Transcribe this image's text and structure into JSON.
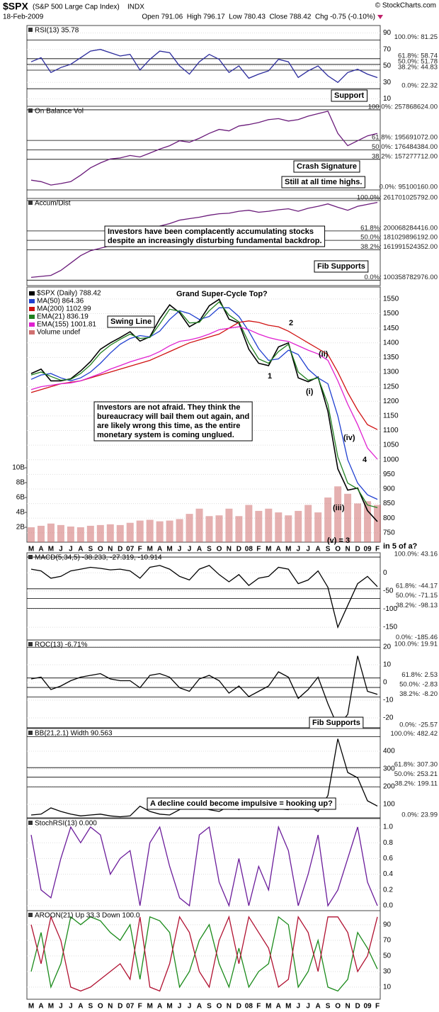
{
  "header": {
    "symbol": "$SPX",
    "name": "(S&P 500 Large Cap Index)",
    "exchange": "INDX",
    "copyright": "© StockCharts.com",
    "date": "18-Feb-2009",
    "quote": "Open 791.06  High 796.17  Low 780.43  Close 788.42  Chg -0.75 (-0.10%)"
  },
  "chart_data": [
    {
      "type": "line",
      "title": "RSI(13) 35.78",
      "ylim": [
        1,
        99
      ],
      "yticks": [
        90,
        70,
        50,
        30,
        10
      ],
      "series": [
        {
          "name": "RSI(13)",
          "color": "#2a2a9c",
          "values": [
            55,
            60,
            42,
            48,
            52,
            60,
            68,
            70,
            66,
            62,
            64,
            45,
            58,
            68,
            66,
            50,
            40,
            55,
            64,
            58,
            42,
            50,
            35,
            40,
            44,
            58,
            55,
            36,
            44,
            50,
            38,
            30,
            42,
            46,
            40,
            35.78
          ]
        }
      ],
      "fib": [
        {
          "value": 81.25,
          "label": "100.0%: 81.25"
        },
        {
          "value": 58.74,
          "label": "61.8%: 58.74"
        },
        {
          "value": 51.78,
          "label": "50.0%: 51.78"
        },
        {
          "value": 44.83,
          "label": "38.2%: 44.83"
        },
        {
          "value": 22.32,
          "label": "0.0%: 22.32"
        }
      ],
      "annotations": [
        [
          "Support"
        ]
      ]
    },
    {
      "type": "line",
      "title": "On Balance Vol",
      "ylim": [
        77800000,
        265000000
      ],
      "series": [
        {
          "name": "On Balance Vol",
          "color": "#6a1b7a",
          "values": [
            115000000,
            112000000,
            105000000,
            108000000,
            112000000,
            125000000,
            140000000,
            150000000,
            158000000,
            160000000,
            165000000,
            162000000,
            170000000,
            178000000,
            185000000,
            195000000,
            192000000,
            200000000,
            210000000,
            218000000,
            215000000,
            225000000,
            228000000,
            232000000,
            238000000,
            240000000,
            235000000,
            238000000,
            245000000,
            250000000,
            255000000,
            210000000,
            185000000,
            195000000,
            205000000,
            210000000
          ]
        }
      ],
      "fib": [
        {
          "value": 257868624,
          "label": "100.0%: 257868624.00"
        },
        {
          "value": 195691072,
          "label": "61.8%: 195691072.00"
        },
        {
          "value": 176484384,
          "label": "50.0%: 176484384.00"
        },
        {
          "value": 157277712,
          "label": "38.2%: 157277712.00"
        },
        {
          "value": 95100160,
          "label": "0.0%: 95100160.00"
        }
      ],
      "annotations": [
        [
          "Crash Signature"
        ],
        [
          "Still at all time highs."
        ]
      ]
    },
    {
      "type": "line",
      "title": "Accum/Dist",
      "ylim": [
        89300000000,
        266000000000
      ],
      "series": [
        {
          "name": "Accum/Dist",
          "color": "#6a1b7a",
          "values": [
            106000000000,
            108000000000,
            110000000000,
            120000000000,
            135000000000,
            150000000000,
            160000000000,
            165000000000,
            170000000000,
            180000000000,
            190000000000,
            200000000000,
            205000000000,
            210000000000,
            215000000000,
            222000000000,
            225000000000,
            228000000000,
            232000000000,
            235000000000,
            236000000000,
            240000000000,
            242000000000,
            238000000000,
            240000000000,
            243000000000,
            245000000000,
            240000000000,
            246000000000,
            250000000000,
            255000000000,
            248000000000,
            242000000000,
            250000000000,
            254000000000,
            258000000000
          ]
        }
      ],
      "fib": [
        {
          "value": 261701025792,
          "label": "100.0%: 261701025792.00"
        },
        {
          "value": 200068284416,
          "label": "61.8%: 200068284416.00"
        },
        {
          "value": 181029896192,
          "label": "50.0%: 181029896192.00"
        },
        {
          "value": 161991524352,
          "label": "38.2%: 161991524352.00"
        },
        {
          "value": 100358782976,
          "label": "0.0%: 100358782976.00"
        }
      ],
      "annotations": [
        [
          "Investors have been complacently accumulating stocks",
          "despite an increasingly disturbing fundamental backdrop."
        ],
        [
          "Fib Supports"
        ]
      ]
    },
    {
      "type": "line",
      "ylim": [
        718,
        1591
      ],
      "yticks": [
        1550,
        1500,
        1450,
        1400,
        1350,
        1300,
        1250,
        1200,
        1150,
        1100,
        1050,
        1000,
        950,
        900,
        850,
        800,
        750
      ],
      "y2lim": [
        0,
        34300000000
      ],
      "y2ticks": [
        {
          "value": 2000000000,
          "label": "2B"
        },
        {
          "value": 4000000000,
          "label": "4B"
        },
        {
          "value": 6000000000,
          "label": "6B"
        },
        {
          "value": 8000000000,
          "label": "8B"
        },
        {
          "value": 10000000000,
          "label": "10B"
        }
      ],
      "categories": [
        "M",
        "A",
        "M",
        "J",
        "J",
        "A",
        "S",
        "O",
        "N",
        "D",
        "07",
        "F",
        "M",
        "A",
        "M",
        "J",
        "J",
        "A",
        "S",
        "O",
        "N",
        "D",
        "08",
        "F",
        "M",
        "A",
        "M",
        "J",
        "J",
        "A",
        "S",
        "O",
        "N",
        "D",
        "09",
        "F"
      ],
      "series": [
        {
          "name": "$SPX (Daily) 788.42",
          "color": "#000000",
          "values": [
            1295,
            1310,
            1270,
            1270,
            1277,
            1304,
            1336,
            1378,
            1400,
            1418,
            1438,
            1406,
            1421,
            1482,
            1530,
            1503,
            1455,
            1474,
            1527,
            1549,
            1481,
            1468,
            1378,
            1330,
            1322,
            1386,
            1400,
            1280,
            1267,
            1283,
            1166,
            969,
            896,
            903,
            826,
            788.42
          ]
        },
        {
          "name": "MA(50) 864.36",
          "color": "#1f3fd0",
          "values": [
            1275,
            1290,
            1295,
            1280,
            1270,
            1280,
            1300,
            1330,
            1365,
            1395,
            1415,
            1425,
            1420,
            1440,
            1480,
            1510,
            1500,
            1480,
            1490,
            1520,
            1520,
            1490,
            1440,
            1380,
            1340,
            1345,
            1375,
            1360,
            1310,
            1280,
            1260,
            1150,
            1000,
            920,
            880,
            864.36
          ]
        },
        {
          "name": "MA(200) 1102.99",
          "color": "#d01010",
          "values": [
            1230,
            1240,
            1250,
            1260,
            1265,
            1270,
            1280,
            1290,
            1300,
            1310,
            1320,
            1330,
            1340,
            1355,
            1370,
            1385,
            1400,
            1410,
            1420,
            1430,
            1450,
            1470,
            1475,
            1470,
            1460,
            1455,
            1440,
            1420,
            1400,
            1380,
            1360,
            1300,
            1230,
            1170,
            1120,
            1102.99
          ]
        },
        {
          "name": "EMA(21) 836.19",
          "color": "#208020",
          "values": [
            1290,
            1300,
            1285,
            1272,
            1275,
            1295,
            1325,
            1365,
            1392,
            1412,
            1430,
            1415,
            1418,
            1465,
            1515,
            1508,
            1468,
            1470,
            1510,
            1540,
            1495,
            1472,
            1400,
            1345,
            1330,
            1370,
            1395,
            1300,
            1272,
            1280,
            1190,
            1010,
            920,
            900,
            845,
            836.19
          ]
        },
        {
          "name": "EMA(155) 1001.81",
          "color": "#e020d0",
          "values": [
            1240,
            1250,
            1255,
            1260,
            1263,
            1270,
            1282,
            1295,
            1310,
            1322,
            1335,
            1345,
            1355,
            1370,
            1390,
            1405,
            1410,
            1418,
            1430,
            1445,
            1450,
            1455,
            1445,
            1430,
            1418,
            1410,
            1405,
            1390,
            1375,
            1362,
            1340,
            1270,
            1190,
            1120,
            1040,
            1001.81
          ]
        },
        {
          "name": "Volume undef",
          "color": "#d07070",
          "axis": "y2",
          "values": [
            2000000000,
            2200000000,
            2500000000,
            2300000000,
            2100000000,
            2000000000,
            2200000000,
            2300000000,
            2400000000,
            2300000000,
            2600000000,
            2900000000,
            3000000000,
            2800000000,
            2900000000,
            3100000000,
            3800000000,
            4500000000,
            3500000000,
            3600000000,
            4500000000,
            3500000000,
            5000000000,
            4200000000,
            4500000000,
            4000000000,
            3600000000,
            4200000000,
            5000000000,
            4000000000,
            6000000000,
            7500000000,
            6500000000,
            5200000000,
            5500000000,
            5000000000
          ]
        }
      ],
      "annotations": [
        [
          "Grand Super-Cycle Top?"
        ],
        [
          "Swing Line"
        ],
        [
          "Investors are not afraid. They think the",
          "bureaucracy will bail them out again, and",
          "are likely wrong this time, as the entire",
          "monetary system is coming unglued."
        ],
        [
          "1"
        ],
        [
          "2"
        ],
        [
          "(i)"
        ],
        [
          "(ii)"
        ],
        [
          "(iii)"
        ],
        [
          "(iv)"
        ],
        [
          "(v) = 3"
        ],
        [
          "4"
        ],
        [
          "in 5 of a?"
        ]
      ]
    },
    {
      "type": "line",
      "title": "MACD(5,34,5) -38.233, -27.319, -10.914",
      "ylim": [
        -185,
        55
      ],
      "yticks": [
        0,
        -50,
        -100,
        -150
      ],
      "series": [
        {
          "name": "MACD(5,34,5)",
          "color": "#000000",
          "values": [
            10,
            5,
            -15,
            -10,
            5,
            10,
            15,
            12,
            8,
            10,
            5,
            -15,
            15,
            20,
            10,
            -10,
            -20,
            10,
            20,
            -5,
            -25,
            -5,
            -35,
            -15,
            -10,
            15,
            10,
            -30,
            -20,
            5,
            -40,
            -150,
            -90,
            -30,
            -10,
            -38.233
          ]
        }
      ],
      "fib": [
        {
          "value": 43.16,
          "label": "100.0%: 43.16"
        },
        {
          "value": -44.17,
          "label": "61.8%: -44.17"
        },
        {
          "value": -71.15,
          "label": "50.0%: -71.15"
        },
        {
          "value": -98.13,
          "label": "38.2%: -98.13"
        },
        {
          "value": -185.46,
          "label": "0.0%: -185.46"
        }
      ]
    },
    {
      "type": "line",
      "title": "ROC(13) -6.71%",
      "ylim": [
        -26,
        24
      ],
      "yticks": [
        20,
        10,
        0,
        -10,
        -20
      ],
      "series": [
        {
          "name": "ROC(13)",
          "color": "#000000",
          "values": [
            2,
            3,
            -4,
            -2,
            1,
            3,
            4,
            5,
            2,
            1,
            1,
            -3,
            4,
            5,
            3,
            -3,
            -5,
            2,
            4,
            1,
            -6,
            -2,
            -8,
            -5,
            -2,
            6,
            3,
            -9,
            -4,
            3,
            -12,
            -25,
            -18,
            15,
            -5,
            -6.71
          ]
        }
      ],
      "fib": [
        {
          "value": 19.91,
          "label": "100.0%: 19.91"
        },
        {
          "value": 2.53,
          "label": "61.8%: 2.53"
        },
        {
          "value": -2.83,
          "label": "50.0%: -2.83"
        },
        {
          "value": -8.2,
          "label": "38.2%: -8.20"
        },
        {
          "value": -25.57,
          "label": "0.0%: -25.57"
        }
      ],
      "annotations": [
        [
          "Fib Supports"
        ]
      ]
    },
    {
      "type": "line",
      "title": "BB(21,2.1) Width 90.563",
      "ylim": [
        20,
        528
      ],
      "yticks": [
        400,
        300,
        200,
        100
      ],
      "series": [
        {
          "name": "BB(21,2.1) Width",
          "color": "#000000",
          "values": [
            40,
            45,
            80,
            60,
            45,
            35,
            40,
            45,
            35,
            30,
            35,
            90,
            60,
            45,
            40,
            70,
            110,
            90,
            70,
            60,
            90,
            70,
            120,
            90,
            80,
            75,
            70,
            130,
            90,
            60,
            150,
            470,
            280,
            250,
            120,
            90.563
          ]
        }
      ],
      "fib": [
        {
          "value": 482.42,
          "label": "100.0%: 482.42"
        },
        {
          "value": 307.3,
          "label": "61.8%: 307.30"
        },
        {
          "value": 253.21,
          "label": "50.0%: 253.21"
        },
        {
          "value": 199.11,
          "label": "38.2%: 199.11"
        },
        {
          "value": 23.99,
          "label": "0.0%: 23.99"
        }
      ],
      "annotations": [
        [
          "A decline could become impulsive = hooking up?"
        ]
      ]
    },
    {
      "type": "line",
      "title": "StochRSI(13) 0.000",
      "ylim": [
        -0.063,
        1.108
      ],
      "yticks": [
        {
          "value": 1,
          "label": "1.0"
        },
        0.8,
        0.6,
        0.4,
        0.2,
        {
          "value": 0,
          "label": "0.0"
        }
      ],
      "series": [
        {
          "name": "StochRSI(13)",
          "color": "#6a1b9a",
          "values": [
            0.9,
            0.2,
            0.1,
            0.6,
            1,
            0.8,
            1,
            0.9,
            0.4,
            0.6,
            0.7,
            0,
            0.8,
            1,
            0.5,
            0.1,
            0,
            0.9,
            1,
            0.3,
            0,
            0.6,
            0,
            0.5,
            0.2,
            1,
            0.7,
            0,
            0.4,
            0.9,
            0,
            0.2,
            0.6,
            1,
            0.3,
            0
          ]
        }
      ]
    },
    {
      "type": "line",
      "title": "AROON(21) Up 33.3 Down 100.0",
      "ylim": [
        -5.5,
        108
      ],
      "yticks": [
        90,
        70,
        50,
        30,
        10
      ],
      "categories": [
        "M",
        "A",
        "M",
        "J",
        "J",
        "A",
        "S",
        "O",
        "N",
        "D",
        "07",
        "F",
        "M",
        "A",
        "M",
        "J",
        "J",
        "A",
        "S",
        "O",
        "N",
        "D",
        "08",
        "F",
        "M",
        "A",
        "M",
        "J",
        "J",
        "A",
        "S",
        "O",
        "N",
        "D",
        "09",
        "F"
      ],
      "series": [
        {
          "name": "Aroon Up",
          "color": "#1a8a1a",
          "values": [
            30,
            80,
            10,
            40,
            100,
            90,
            100,
            95,
            80,
            70,
            90,
            20,
            100,
            95,
            80,
            10,
            30,
            70,
            90,
            40,
            10,
            60,
            10,
            30,
            40,
            100,
            90,
            10,
            30,
            70,
            10,
            5,
            20,
            80,
            60,
            33.3
          ]
        },
        {
          "name": "Aroon Down",
          "color": "#b01030",
          "values": [
            90,
            40,
            100,
            70,
            10,
            5,
            10,
            20,
            30,
            40,
            20,
            100,
            10,
            5,
            40,
            100,
            80,
            30,
            10,
            70,
            100,
            40,
            100,
            80,
            60,
            10,
            20,
            100,
            80,
            30,
            100,
            100,
            80,
            30,
            50,
            100
          ]
        }
      ]
    }
  ]
}
